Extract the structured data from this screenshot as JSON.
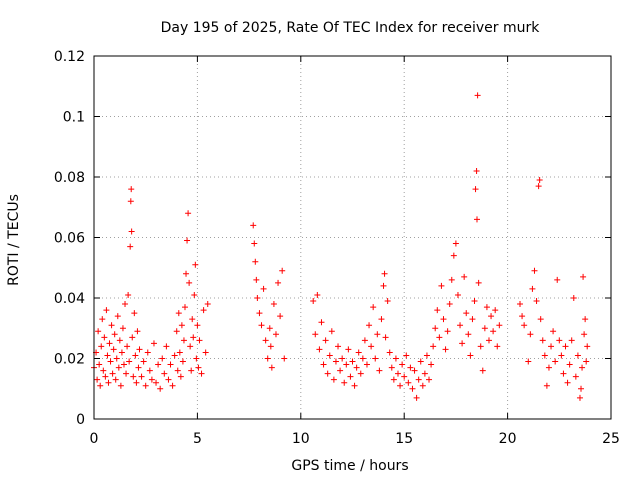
{
  "chart_data": {
    "type": "scatter",
    "title": "Day 195 of 2025, Rate Of TEC Index for receiver murk",
    "xlabel": "GPS time / hours",
    "ylabel": "ROTI / TECUs",
    "xlim": [
      0,
      25
    ],
    "ylim": [
      0,
      0.12
    ],
    "xticks": [
      "0",
      "5",
      "10",
      "15",
      "20",
      "25"
    ],
    "yticks": [
      "0",
      "0.02",
      "0.04",
      "0.06",
      "0.08",
      "0.1",
      "0.12"
    ],
    "grid": true,
    "marker": "plus",
    "color": "#ff0000",
    "series": [
      {
        "points": [
          [
            0.0,
            0.017
          ],
          [
            0.1,
            0.022
          ],
          [
            0.15,
            0.013
          ],
          [
            0.2,
            0.029
          ],
          [
            0.25,
            0.018
          ],
          [
            0.3,
            0.011
          ],
          [
            0.35,
            0.024
          ],
          [
            0.4,
            0.033
          ],
          [
            0.45,
            0.016
          ],
          [
            0.5,
            0.027
          ],
          [
            0.55,
            0.014
          ],
          [
            0.6,
            0.036
          ],
          [
            0.65,
            0.021
          ],
          [
            0.7,
            0.012
          ],
          [
            0.75,
            0.025
          ],
          [
            0.8,
            0.019
          ],
          [
            0.85,
            0.031
          ],
          [
            0.9,
            0.015
          ],
          [
            0.95,
            0.023
          ],
          [
            1.0,
            0.028
          ],
          [
            1.05,
            0.013
          ],
          [
            1.1,
            0.02
          ],
          [
            1.15,
            0.034
          ],
          [
            1.2,
            0.017
          ],
          [
            1.25,
            0.026
          ],
          [
            1.3,
            0.011
          ],
          [
            1.35,
            0.022
          ],
          [
            1.4,
            0.03
          ],
          [
            1.45,
            0.018
          ],
          [
            1.5,
            0.038
          ],
          [
            1.55,
            0.015
          ],
          [
            1.6,
            0.024
          ],
          [
            1.65,
            0.041
          ],
          [
            1.7,
            0.019
          ],
          [
            1.75,
            0.057
          ],
          [
            1.78,
            0.072
          ],
          [
            1.8,
            0.076
          ],
          [
            1.82,
            0.062
          ],
          [
            1.85,
            0.027
          ],
          [
            1.9,
            0.014
          ],
          [
            1.95,
            0.035
          ],
          [
            2.0,
            0.021
          ],
          [
            2.05,
            0.012
          ],
          [
            2.1,
            0.029
          ],
          [
            2.15,
            0.017
          ],
          [
            2.2,
            0.023
          ],
          [
            2.3,
            0.014
          ],
          [
            2.4,
            0.019
          ],
          [
            2.5,
            0.011
          ],
          [
            2.6,
            0.022
          ],
          [
            2.7,
            0.016
          ],
          [
            2.8,
            0.013
          ],
          [
            2.9,
            0.025
          ],
          [
            3.0,
            0.012
          ],
          [
            3.1,
            0.018
          ],
          [
            3.2,
            0.01
          ],
          [
            3.3,
            0.02
          ],
          [
            3.4,
            0.015
          ],
          [
            3.5,
            0.024
          ],
          [
            3.6,
            0.013
          ],
          [
            3.7,
            0.018
          ],
          [
            3.8,
            0.011
          ],
          [
            3.9,
            0.021
          ],
          [
            4.0,
            0.029
          ],
          [
            4.05,
            0.016
          ],
          [
            4.1,
            0.035
          ],
          [
            4.15,
            0.022
          ],
          [
            4.2,
            0.014
          ],
          [
            4.25,
            0.031
          ],
          [
            4.3,
            0.019
          ],
          [
            4.35,
            0.026
          ],
          [
            4.4,
            0.037
          ],
          [
            4.45,
            0.048
          ],
          [
            4.5,
            0.059
          ],
          [
            4.55,
            0.068
          ],
          [
            4.6,
            0.045
          ],
          [
            4.65,
            0.024
          ],
          [
            4.7,
            0.016
          ],
          [
            4.75,
            0.033
          ],
          [
            4.8,
            0.027
          ],
          [
            4.85,
            0.041
          ],
          [
            4.9,
            0.051
          ],
          [
            4.95,
            0.02
          ],
          [
            5.0,
            0.031
          ],
          [
            5.05,
            0.017
          ],
          [
            5.1,
            0.026
          ],
          [
            5.2,
            0.015
          ],
          [
            5.3,
            0.036
          ],
          [
            5.4,
            0.022
          ],
          [
            5.5,
            0.038
          ],
          [
            7.7,
            0.064
          ],
          [
            7.75,
            0.058
          ],
          [
            7.8,
            0.052
          ],
          [
            7.85,
            0.046
          ],
          [
            7.9,
            0.04
          ],
          [
            8.0,
            0.035
          ],
          [
            8.1,
            0.031
          ],
          [
            8.2,
            0.043
          ],
          [
            8.3,
            0.026
          ],
          [
            8.4,
            0.02
          ],
          [
            8.5,
            0.03
          ],
          [
            8.55,
            0.024
          ],
          [
            8.6,
            0.017
          ],
          [
            8.7,
            0.038
          ],
          [
            8.8,
            0.028
          ],
          [
            8.9,
            0.045
          ],
          [
            9.0,
            0.034
          ],
          [
            9.1,
            0.049
          ],
          [
            9.2,
            0.02
          ],
          [
            10.6,
            0.039
          ],
          [
            10.7,
            0.028
          ],
          [
            10.8,
            0.041
          ],
          [
            10.9,
            0.023
          ],
          [
            11.0,
            0.032
          ],
          [
            11.1,
            0.018
          ],
          [
            11.2,
            0.026
          ],
          [
            11.3,
            0.015
          ],
          [
            11.4,
            0.021
          ],
          [
            11.5,
            0.029
          ],
          [
            11.6,
            0.013
          ],
          [
            11.7,
            0.019
          ],
          [
            11.8,
            0.024
          ],
          [
            11.9,
            0.016
          ],
          [
            12.0,
            0.02
          ],
          [
            12.1,
            0.012
          ],
          [
            12.2,
            0.018
          ],
          [
            12.3,
            0.023
          ],
          [
            12.4,
            0.014
          ],
          [
            12.5,
            0.019
          ],
          [
            12.6,
            0.011
          ],
          [
            12.7,
            0.017
          ],
          [
            12.8,
            0.022
          ],
          [
            12.9,
            0.015
          ],
          [
            13.0,
            0.02
          ],
          [
            13.1,
            0.026
          ],
          [
            13.2,
            0.018
          ],
          [
            13.3,
            0.031
          ],
          [
            13.4,
            0.024
          ],
          [
            13.5,
            0.037
          ],
          [
            13.6,
            0.02
          ],
          [
            13.7,
            0.028
          ],
          [
            13.8,
            0.016
          ],
          [
            13.9,
            0.033
          ],
          [
            14.0,
            0.044
          ],
          [
            14.05,
            0.048
          ],
          [
            14.1,
            0.027
          ],
          [
            14.2,
            0.039
          ],
          [
            14.3,
            0.022
          ],
          [
            14.4,
            0.017
          ],
          [
            14.5,
            0.013
          ],
          [
            14.6,
            0.02
          ],
          [
            14.7,
            0.015
          ],
          [
            14.8,
            0.011
          ],
          [
            14.9,
            0.018
          ],
          [
            15.0,
            0.014
          ],
          [
            15.1,
            0.021
          ],
          [
            15.2,
            0.012
          ],
          [
            15.3,
            0.017
          ],
          [
            15.4,
            0.01
          ],
          [
            15.5,
            0.016
          ],
          [
            15.6,
            0.007
          ],
          [
            15.7,
            0.013
          ],
          [
            15.8,
            0.019
          ],
          [
            15.9,
            0.011
          ],
          [
            16.0,
            0.015
          ],
          [
            16.1,
            0.021
          ],
          [
            16.2,
            0.013
          ],
          [
            16.3,
            0.018
          ],
          [
            16.4,
            0.024
          ],
          [
            16.5,
            0.03
          ],
          [
            16.6,
            0.036
          ],
          [
            16.7,
            0.027
          ],
          [
            16.8,
            0.044
          ],
          [
            16.9,
            0.033
          ],
          [
            17.0,
            0.023
          ],
          [
            17.1,
            0.029
          ],
          [
            17.2,
            0.038
          ],
          [
            17.3,
            0.046
          ],
          [
            17.4,
            0.054
          ],
          [
            17.5,
            0.058
          ],
          [
            17.6,
            0.041
          ],
          [
            17.7,
            0.031
          ],
          [
            17.8,
            0.025
          ],
          [
            17.9,
            0.047
          ],
          [
            18.0,
            0.035
          ],
          [
            18.1,
            0.028
          ],
          [
            18.2,
            0.021
          ],
          [
            18.3,
            0.033
          ],
          [
            18.4,
            0.039
          ],
          [
            18.45,
            0.076
          ],
          [
            18.5,
            0.082
          ],
          [
            18.52,
            0.066
          ],
          [
            18.55,
            0.107
          ],
          [
            18.6,
            0.045
          ],
          [
            18.7,
            0.024
          ],
          [
            18.8,
            0.016
          ],
          [
            18.9,
            0.03
          ],
          [
            19.0,
            0.037
          ],
          [
            19.1,
            0.026
          ],
          [
            19.2,
            0.034
          ],
          [
            19.3,
            0.029
          ],
          [
            19.4,
            0.036
          ],
          [
            19.5,
            0.024
          ],
          [
            19.6,
            0.031
          ],
          [
            20.6,
            0.038
          ],
          [
            20.7,
            0.034
          ],
          [
            20.8,
            0.031
          ],
          [
            21.0,
            0.019
          ],
          [
            21.1,
            0.028
          ],
          [
            21.2,
            0.043
          ],
          [
            21.3,
            0.049
          ],
          [
            21.4,
            0.039
          ],
          [
            21.5,
            0.077
          ],
          [
            21.55,
            0.079
          ],
          [
            21.6,
            0.033
          ],
          [
            21.7,
            0.026
          ],
          [
            21.8,
            0.021
          ],
          [
            21.9,
            0.011
          ],
          [
            22.0,
            0.017
          ],
          [
            22.1,
            0.024
          ],
          [
            22.2,
            0.029
          ],
          [
            22.3,
            0.019
          ],
          [
            22.4,
            0.046
          ],
          [
            22.5,
            0.026
          ],
          [
            22.6,
            0.021
          ],
          [
            22.7,
            0.015
          ],
          [
            22.8,
            0.024
          ],
          [
            22.9,
            0.012
          ],
          [
            23.0,
            0.018
          ],
          [
            23.1,
            0.026
          ],
          [
            23.2,
            0.04
          ],
          [
            23.3,
            0.014
          ],
          [
            23.4,
            0.021
          ],
          [
            23.5,
            0.007
          ],
          [
            23.55,
            0.01
          ],
          [
            23.6,
            0.017
          ],
          [
            23.65,
            0.047
          ],
          [
            23.7,
            0.028
          ],
          [
            23.75,
            0.033
          ],
          [
            23.8,
            0.019
          ],
          [
            23.85,
            0.024
          ]
        ]
      }
    ]
  }
}
